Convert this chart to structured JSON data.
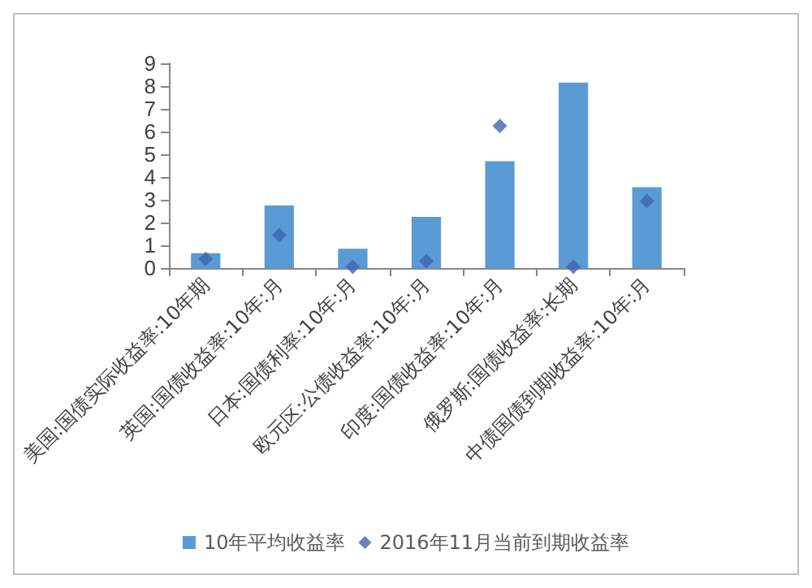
{
  "chart_data": {
    "type": "bar",
    "categories": [
      "美国:国债实际收益率:10年期",
      "英国:国债收益率:10年:月",
      "日本:国债利率:10年:月",
      "欧元区:公债收益率:10年:月",
      "印度:国债收益率:10年:月",
      "俄罗斯:国债收益率:长期",
      "中债国债到期收益率:10年:月"
    ],
    "series": [
      {
        "name": "10年平均收益率",
        "color": "#5b9bd5",
        "values": [
          0.65,
          2.75,
          0.85,
          2.25,
          4.7,
          8.15,
          3.55
        ]
      },
      {
        "name": "2016年11月当前到期收益率",
        "type": "scatter",
        "color": "#4064b0",
        "values": [
          0.4,
          1.45,
          0.05,
          0.3,
          6.25,
          0.05,
          2.95
        ]
      }
    ],
    "ylim": [
      0,
      9
    ],
    "yticks": [
      0,
      1,
      2,
      3,
      4,
      5,
      6,
      7,
      8,
      9
    ],
    "grid": false,
    "legend": "bottom",
    "marker": "diamond"
  }
}
